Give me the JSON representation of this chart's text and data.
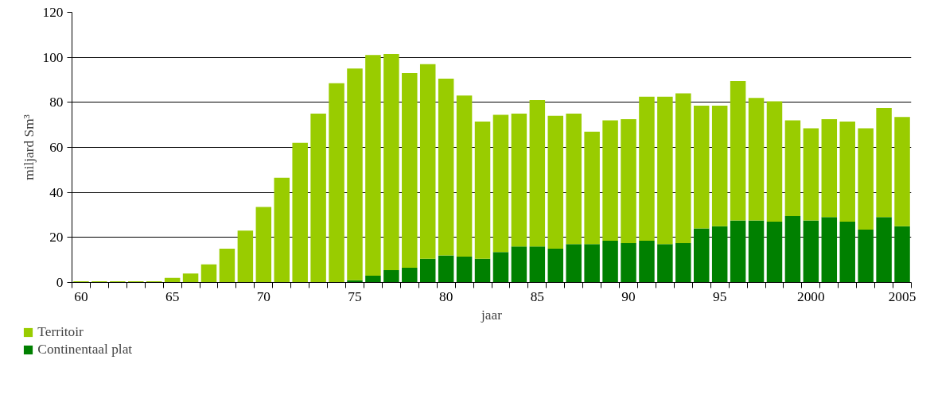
{
  "chart_data": {
    "type": "bar",
    "stacked": true,
    "xlabel": "jaar",
    "ylabel": "miljard Sm³",
    "categories": [
      "60",
      null,
      null,
      null,
      null,
      "65",
      null,
      null,
      null,
      null,
      "70",
      null,
      null,
      null,
      null,
      "75",
      null,
      null,
      null,
      null,
      "80",
      null,
      null,
      null,
      null,
      "85",
      null,
      null,
      null,
      null,
      "90",
      null,
      null,
      null,
      null,
      "95",
      null,
      null,
      null,
      null,
      "2000",
      null,
      null,
      null,
      null,
      "2005"
    ],
    "series": [
      {
        "name": "Continentaal plat",
        "color": "#008000",
        "values": [
          0,
          0,
          0,
          0,
          0,
          0,
          0,
          0,
          0,
          0,
          0,
          0,
          0,
          0,
          0,
          1,
          3,
          5.5,
          6.5,
          10.5,
          12,
          11.5,
          10.5,
          13.5,
          16,
          16,
          15,
          17,
          17,
          18.5,
          17.5,
          18.5,
          17,
          17.5,
          24,
          25,
          27.5,
          27.5,
          27,
          29.5,
          27.5,
          29,
          27,
          23.5,
          29,
          25
        ]
      },
      {
        "name": "Territoir",
        "color": "#99cc00",
        "values": [
          0.5,
          0.5,
          0.5,
          0.5,
          0.5,
          2,
          4,
          8,
          15,
          23,
          33.5,
          46.5,
          62,
          75,
          88.5,
          94,
          98,
          96,
          86.5,
          86.5,
          78.5,
          71.5,
          61,
          61,
          59,
          65,
          59,
          58,
          50,
          53.5,
          55,
          64,
          65.5,
          66.5,
          54.5,
          53.5,
          62,
          54.5,
          53.5,
          42.5,
          41,
          43.5,
          44.5,
          45,
          48.5,
          48.5
        ]
      }
    ],
    "ylim": [
      0,
      120
    ],
    "yticks": [
      0,
      20,
      40,
      60,
      80,
      100,
      120
    ],
    "grid": "y",
    "legend": "bottom left"
  }
}
